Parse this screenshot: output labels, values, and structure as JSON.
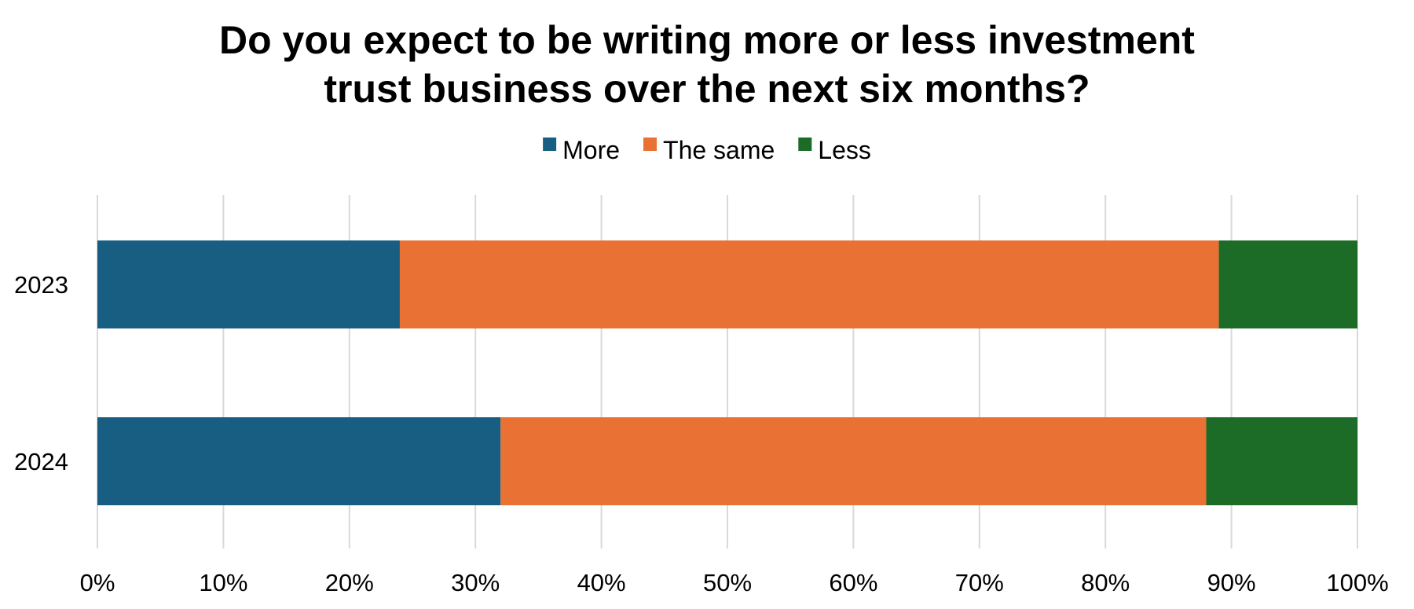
{
  "chart_data": {
    "type": "bar",
    "orientation": "horizontal",
    "stacked": true,
    "title_lines": [
      "Do you expect to be writing more or less investment",
      "trust business over the next six months?"
    ],
    "categories": [
      "2023",
      "2024"
    ],
    "series": [
      {
        "name": "More",
        "color": "#175e82",
        "values": [
          24,
          32
        ]
      },
      {
        "name": "The same",
        "color": "#e87133",
        "values": [
          65,
          56
        ]
      },
      {
        "name": "Less",
        "color": "#1c6b27",
        "values": [
          11,
          12
        ]
      }
    ],
    "xlim": [
      0,
      100
    ],
    "x_ticks": [
      "0%",
      "10%",
      "20%",
      "30%",
      "40%",
      "50%",
      "60%",
      "70%",
      "80%",
      "90%",
      "100%"
    ],
    "x_tick_values": [
      0,
      10,
      20,
      30,
      40,
      50,
      60,
      70,
      80,
      90,
      100
    ],
    "grid": "vertical",
    "legend_position": "top"
  }
}
